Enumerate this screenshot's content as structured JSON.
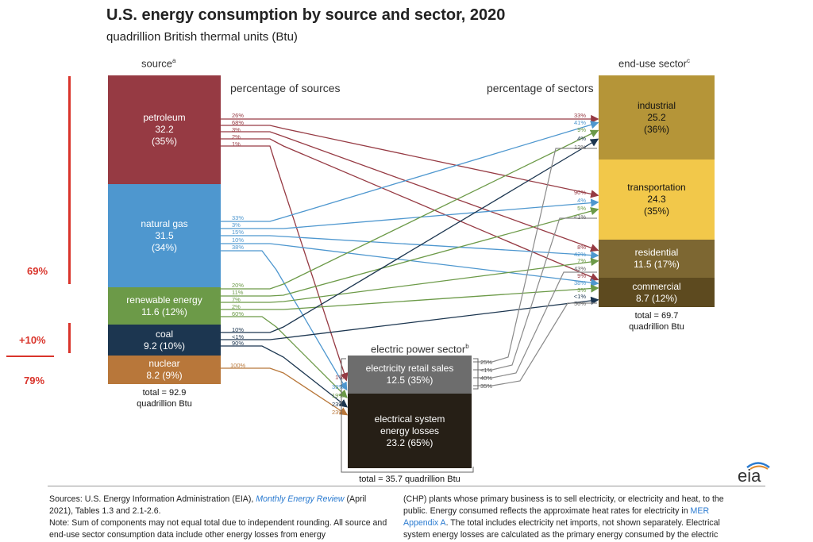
{
  "title": "U.S. energy consumption by source and sector, 2020",
  "subtitle": "quadrillion British thermal units (Btu)",
  "headers": {
    "source": "source",
    "source_sup": "a",
    "end_use": "end-use sector",
    "end_use_sup": "c",
    "pct_sources": "percentage of sources",
    "pct_sectors": "percentage of sectors",
    "power": "electric power sector",
    "power_sup": "b"
  },
  "sources": {
    "petroleum": {
      "name": "petroleum",
      "value": "32.2",
      "pct": "(35%)",
      "color": "#963a43"
    },
    "natural_gas": {
      "name": "natural gas",
      "value": "31.5",
      "pct": "(34%)",
      "color": "#4e97cf"
    },
    "renewable": {
      "name": "renewable energy",
      "value": "11.6 (12%)",
      "color": "#6c9a48"
    },
    "coal": {
      "name": "coal",
      "value": "9.2 (10%)",
      "color": "#1c3650"
    },
    "nuclear": {
      "name": "nuclear",
      "value": "8.2 (9%)",
      "color": "#b8773a"
    },
    "total_line1": "total = 92.9",
    "total_line2": "quadrillion Btu"
  },
  "sectors": {
    "industrial": {
      "name": "industrial",
      "value": "25.2",
      "pct": "(36%)",
      "color": "#b59538"
    },
    "transportation": {
      "name": "transportation",
      "value": "24.3",
      "pct": "(35%)",
      "color": "#f2c84a"
    },
    "residential": {
      "name": "residential",
      "value": "11.5 (17%)",
      "color": "#7d6732"
    },
    "commercial": {
      "name": "commercial",
      "value": "8.7 (12%)",
      "color": "#5d4a1f"
    },
    "total_line1": "total = 69.7",
    "total_line2": "quadrillion Btu"
  },
  "power_sector": {
    "retail": {
      "name": "electricity retail sales",
      "value": "12.5 (35%)",
      "color": "#6d6d6d"
    },
    "losses": {
      "name1": "electrical system",
      "name2": "energy losses",
      "value": "23.2 (65%)",
      "color": "#261f16"
    },
    "total": "total = 35.7 quadrillion Btu"
  },
  "source_out_labels": {
    "petroleum": [
      "26%",
      "68%",
      "3%",
      "2%",
      "1%"
    ],
    "natural_gas": [
      "33%",
      "3%",
      "15%",
      "10%",
      "38%"
    ],
    "renewable": [
      "20%",
      "11%",
      "7%",
      "2%",
      "60%"
    ],
    "coal": [
      "10%",
      "<1%",
      "90%"
    ],
    "nuclear": [
      "100%"
    ]
  },
  "sector_in_labels": {
    "industrial": [
      "33%",
      "41%",
      "9%",
      "4%",
      "12%"
    ],
    "transportation": [
      "90%",
      "4%",
      "5%",
      "<1%"
    ],
    "residential": [
      "8%",
      "42%",
      "7%",
      "43%"
    ],
    "commercial": [
      "9%",
      "38%",
      "3%",
      "<1%",
      "50%"
    ]
  },
  "power_in_labels": [
    "1%",
    "33%",
    "19%",
    "23%",
    "23%"
  ],
  "retail_out_labels": [
    "25%",
    "<1%",
    "40%",
    "35%"
  ],
  "annotations": {
    "a69": "69%",
    "a10": "+10%",
    "a79": "79%"
  },
  "footer": {
    "col1_a": "Sources: U.S. Energy Information Administration (EIA), ",
    "col1_link": "Monthly Energy Review",
    "col1_b": " (April 2021), Tables 1.3 and 2.1-2.6.",
    "col1_note": "Note: Sum of components may not equal total due to independent rounding. All source and end-use sector consumption data include other energy losses from energy",
    "col2_a": "(CHP) plants whose primary business is to sell electricity, or electricity and heat, to the public. Energy consumed reflects the approximate heat rates for electricity in ",
    "col2_link": "MER Appendix A",
    "col2_b": ". The total includes electricity net imports, not shown separately. Electrical system energy losses are calculated as the primary energy consumed by the electric"
  },
  "logo": "eia"
}
